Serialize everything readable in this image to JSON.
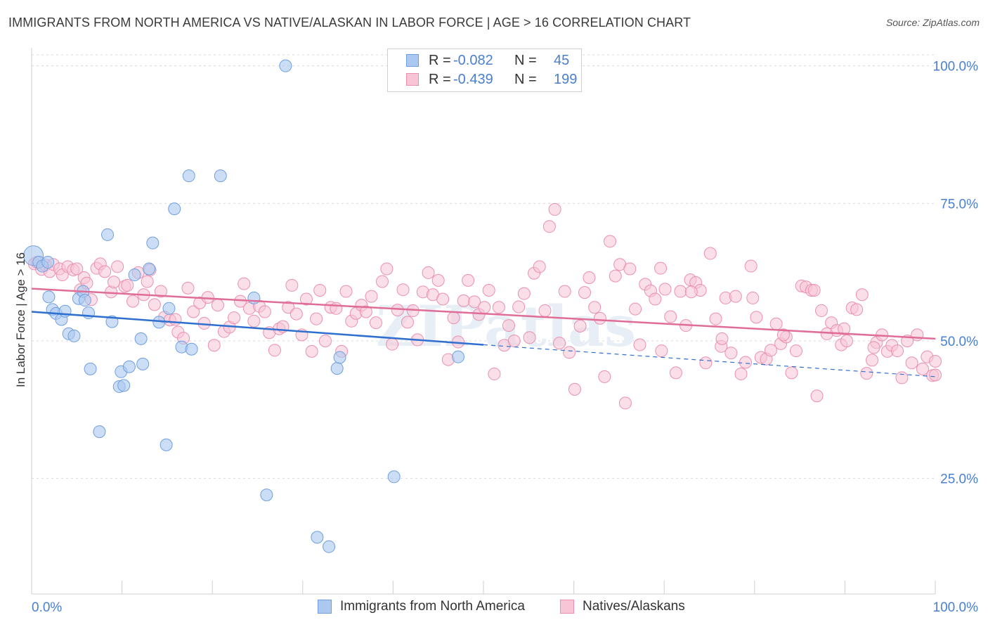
{
  "title": "IMMIGRANTS FROM NORTH AMERICA VS NATIVE/ALASKAN IN LABOR FORCE | AGE > 16 CORRELATION CHART",
  "source": "Source: ZipAtlas.com",
  "watermark": "ZIPatlas",
  "legend": {
    "rows": [
      {
        "r_label": "R =",
        "r_value": "-0.082",
        "n_label": "N =",
        "n_value": "45",
        "color": "#7fa8e8"
      },
      {
        "r_label": "R =",
        "r_value": "-0.439",
        "n_label": "N =",
        "n_value": "199",
        "color": "#ef9ab8"
      }
    ]
  },
  "colors": {
    "blue_fill": "#aac8f0",
    "blue_stroke": "#6f9fe0",
    "blue_line": "#2f6fd0",
    "pink_fill": "#f7c5d6",
    "pink_stroke": "#ea8fb0",
    "pink_line": "#e06d98",
    "tick_text": "#4a7fd0",
    "grid": "#d9d9d9"
  },
  "chart_data": {
    "type": "scatter",
    "title": "IMMIGRANTS FROM NORTH AMERICA VS NATIVE/ALASKAN IN LABOR FORCE | AGE > 16 CORRELATION CHART",
    "xlabel": "",
    "ylabel": "In Labor Force | Age > 16",
    "x_tick_labels": [
      "0.0%",
      "100.0%"
    ],
    "y_tick_labels": [
      "25.0%",
      "50.0%",
      "75.0%",
      "100.0%"
    ],
    "xlim": [
      0,
      100
    ],
    "ylim": [
      4,
      102
    ],
    "grid": true,
    "legend_position": "top-center",
    "series": [
      {
        "name": "Immigrants from North America",
        "color": "#7fa8e8",
        "trend": {
          "x": [
            0,
            50
          ],
          "y": [
            55.3,
            49.3
          ],
          "dashed_to": [
            100,
            43.5
          ]
        },
        "points": [
          [
            0.2,
            65.5
          ],
          [
            0.8,
            64.3
          ],
          [
            1.2,
            63.6
          ],
          [
            1.8,
            64.3
          ],
          [
            1.9,
            58.0
          ],
          [
            2.3,
            55.7
          ],
          [
            2.7,
            55.0
          ],
          [
            3.3,
            53.9
          ],
          [
            3.7,
            55.4
          ],
          [
            4.1,
            51.3
          ],
          [
            4.7,
            50.9
          ],
          [
            5.2,
            57.7
          ],
          [
            5.7,
            59.0
          ],
          [
            5.9,
            57.4
          ],
          [
            6.3,
            55.1
          ],
          [
            6.5,
            44.9
          ],
          [
            7.5,
            33.5
          ],
          [
            8.4,
            69.3
          ],
          [
            8.9,
            53.5
          ],
          [
            9.7,
            41.7
          ],
          [
            9.9,
            44.4
          ],
          [
            10.2,
            41.9
          ],
          [
            10.8,
            45.3
          ],
          [
            11.4,
            62.0
          ],
          [
            12.1,
            50.4
          ],
          [
            12.3,
            45.8
          ],
          [
            13.0,
            63.1
          ],
          [
            13.4,
            67.8
          ],
          [
            14.1,
            53.4
          ],
          [
            14.9,
            31.1
          ],
          [
            15.2,
            55.9
          ],
          [
            15.8,
            74.0
          ],
          [
            16.6,
            48.9
          ],
          [
            17.4,
            80.0
          ],
          [
            17.7,
            48.5
          ],
          [
            20.9,
            80.0
          ],
          [
            24.6,
            57.8
          ],
          [
            26.0,
            22.0
          ],
          [
            28.1,
            100.0
          ],
          [
            31.6,
            14.3
          ],
          [
            32.9,
            12.6
          ],
          [
            33.8,
            45.0
          ],
          [
            34.1,
            47.0
          ],
          [
            40.1,
            25.3
          ],
          [
            47.2,
            47.1
          ]
        ]
      },
      {
        "name": "Natives/Alaskans",
        "color": "#ef9ab8",
        "trend": {
          "x": [
            0,
            100
          ],
          "y": [
            59.5,
            50.4
          ]
        },
        "points": [
          [
            0.3,
            64.0
          ],
          [
            0.6,
            64.3
          ],
          [
            1.1,
            63.0
          ],
          [
            1.5,
            63.8
          ],
          [
            2.0,
            62.6
          ],
          [
            2.4,
            63.9
          ],
          [
            3.1,
            63.1
          ],
          [
            3.4,
            62.0
          ],
          [
            4.0,
            63.5
          ],
          [
            4.6,
            62.9
          ],
          [
            5.0,
            63.1
          ],
          [
            5.4,
            59.3
          ],
          [
            5.8,
            61.5
          ],
          [
            6.1,
            60.5
          ],
          [
            6.6,
            57.5
          ],
          [
            7.2,
            63.2
          ],
          [
            7.6,
            64.0
          ],
          [
            8.1,
            62.6
          ],
          [
            8.8,
            58.9
          ],
          [
            9.1,
            60.7
          ],
          [
            9.5,
            63.5
          ],
          [
            10.3,
            59.9
          ],
          [
            10.6,
            60.1
          ],
          [
            11.2,
            57.2
          ],
          [
            11.8,
            62.4
          ],
          [
            12.4,
            58.4
          ],
          [
            12.8,
            60.8
          ],
          [
            13.1,
            62.9
          ],
          [
            13.6,
            56.6
          ],
          [
            14.3,
            59.0
          ],
          [
            14.7,
            54.3
          ],
          [
            15.3,
            53.8
          ],
          [
            15.9,
            53.9
          ],
          [
            16.2,
            51.6
          ],
          [
            16.8,
            50.5
          ],
          [
            17.3,
            59.6
          ],
          [
            17.9,
            55.3
          ],
          [
            18.6,
            56.9
          ],
          [
            19.1,
            53.2
          ],
          [
            19.5,
            57.9
          ],
          [
            20.2,
            49.2
          ],
          [
            20.6,
            56.5
          ],
          [
            21.3,
            51.7
          ],
          [
            21.9,
            52.5
          ],
          [
            22.4,
            54.2
          ],
          [
            23.1,
            57.2
          ],
          [
            23.5,
            60.4
          ],
          [
            24.1,
            55.9
          ],
          [
            24.6,
            53.6
          ],
          [
            25.2,
            56.3
          ],
          [
            25.8,
            55.3
          ],
          [
            26.3,
            51.5
          ],
          [
            26.9,
            48.3
          ],
          [
            27.4,
            52.2
          ],
          [
            27.8,
            52.6
          ],
          [
            28.4,
            56.1
          ],
          [
            28.8,
            60.1
          ],
          [
            29.3,
            54.9
          ],
          [
            29.9,
            51.1
          ],
          [
            30.4,
            57.6
          ],
          [
            31.0,
            48.1
          ],
          [
            31.5,
            54.0
          ],
          [
            31.9,
            59.2
          ],
          [
            32.5,
            50.0
          ],
          [
            33.1,
            56.1
          ],
          [
            33.7,
            55.9
          ],
          [
            34.3,
            48.1
          ],
          [
            34.8,
            59.0
          ],
          [
            35.4,
            53.6
          ],
          [
            35.9,
            55.0
          ],
          [
            36.5,
            56.5
          ],
          [
            37.0,
            55.3
          ],
          [
            37.6,
            58.1
          ],
          [
            38.1,
            53.3
          ],
          [
            38.8,
            60.8
          ],
          [
            39.3,
            63.1
          ],
          [
            39.9,
            49.4
          ],
          [
            40.5,
            55.6
          ],
          [
            41.1,
            59.3
          ],
          [
            41.6,
            53.4
          ],
          [
            42.2,
            55.5
          ],
          [
            42.7,
            50.2
          ],
          [
            43.3,
            58.9
          ],
          [
            43.9,
            62.4
          ],
          [
            44.4,
            58.4
          ],
          [
            45.0,
            61.0
          ],
          [
            45.5,
            57.6
          ],
          [
            46.1,
            46.6
          ],
          [
            46.7,
            54.2
          ],
          [
            47.2,
            49.8
          ],
          [
            47.8,
            57.3
          ],
          [
            48.3,
            61.0
          ],
          [
            49.0,
            57.1
          ],
          [
            49.5,
            54.8
          ],
          [
            50.1,
            56.1
          ],
          [
            50.6,
            59.2
          ],
          [
            51.2,
            44.0
          ],
          [
            51.7,
            56.1
          ],
          [
            52.3,
            49.2
          ],
          [
            52.8,
            52.8
          ],
          [
            53.4,
            50.0
          ],
          [
            53.9,
            56.2
          ],
          [
            54.5,
            58.6
          ],
          [
            55.1,
            50.6
          ],
          [
            55.6,
            62.3
          ],
          [
            56.2,
            63.5
          ],
          [
            56.8,
            55.5
          ],
          [
            57.3,
            70.8
          ],
          [
            57.9,
            73.9
          ],
          [
            58.4,
            49.6
          ],
          [
            59.0,
            59.0
          ],
          [
            59.5,
            47.9
          ],
          [
            60.1,
            41.2
          ],
          [
            60.7,
            52.7
          ],
          [
            61.2,
            58.8
          ],
          [
            61.7,
            61.5
          ],
          [
            62.3,
            56.1
          ],
          [
            62.9,
            54.1
          ],
          [
            63.4,
            43.5
          ],
          [
            64.0,
            68.1
          ],
          [
            64.6,
            61.8
          ],
          [
            65.1,
            63.9
          ],
          [
            65.7,
            38.7
          ],
          [
            66.2,
            63.1
          ],
          [
            66.8,
            55.8
          ],
          [
            67.3,
            49.3
          ],
          [
            67.9,
            60.3
          ],
          [
            68.5,
            59.1
          ],
          [
            69.0,
            57.6
          ],
          [
            69.6,
            63.2
          ],
          [
            70.1,
            59.4
          ],
          [
            70.7,
            54.4
          ],
          [
            71.3,
            44.2
          ],
          [
            71.8,
            59.0
          ],
          [
            72.4,
            52.8
          ],
          [
            72.9,
            61.1
          ],
          [
            73.5,
            60.6
          ],
          [
            74.0,
            59.2
          ],
          [
            74.6,
            46.0
          ],
          [
            75.1,
            65.9
          ],
          [
            75.7,
            54.0
          ],
          [
            76.3,
            49.0
          ],
          [
            76.8,
            57.8
          ],
          [
            77.4,
            47.8
          ],
          [
            77.9,
            58.1
          ],
          [
            78.5,
            44.0
          ],
          [
            79.0,
            46.1
          ],
          [
            79.6,
            63.6
          ],
          [
            80.2,
            54.3
          ],
          [
            80.7,
            47.0
          ],
          [
            81.3,
            46.7
          ],
          [
            81.8,
            48.3
          ],
          [
            82.4,
            53.1
          ],
          [
            82.9,
            49.5
          ],
          [
            83.5,
            50.7
          ],
          [
            84.1,
            44.2
          ],
          [
            84.6,
            48.2
          ],
          [
            85.2,
            60.0
          ],
          [
            85.7,
            59.8
          ],
          [
            86.3,
            59.2
          ],
          [
            86.9,
            40.0
          ],
          [
            87.4,
            55.5
          ],
          [
            88.0,
            51.3
          ],
          [
            88.5,
            53.3
          ],
          [
            89.1,
            51.9
          ],
          [
            89.6,
            49.3
          ],
          [
            90.2,
            50.0
          ],
          [
            90.8,
            56.0
          ],
          [
            91.3,
            55.7
          ],
          [
            91.9,
            58.4
          ],
          [
            92.4,
            44.1
          ],
          [
            93.0,
            46.5
          ],
          [
            93.5,
            49.7
          ],
          [
            94.1,
            51.1
          ],
          [
            94.7,
            48.1
          ],
          [
            95.2,
            49.2
          ],
          [
            95.8,
            48.2
          ],
          [
            96.3,
            43.3
          ],
          [
            96.9,
            50.0
          ],
          [
            97.4,
            46.0
          ],
          [
            98.0,
            51.1
          ],
          [
            98.6,
            44.9
          ],
          [
            99.1,
            47.1
          ],
          [
            99.7,
            43.7
          ],
          [
            100.0,
            46.3
          ],
          [
            100.0,
            43.8
          ],
          [
            93.2,
            48.8
          ],
          [
            89.9,
            52.2
          ],
          [
            86.6,
            59.2
          ],
          [
            83.2,
            51.1
          ],
          [
            79.8,
            57.8
          ],
          [
            76.4,
            50.4
          ],
          [
            73.0,
            58.9
          ],
          [
            69.7,
            48.2
          ]
        ]
      }
    ]
  },
  "bottom_legend": [
    {
      "label": "Immigrants from North America"
    },
    {
      "label": "Natives/Alaskans"
    }
  ]
}
